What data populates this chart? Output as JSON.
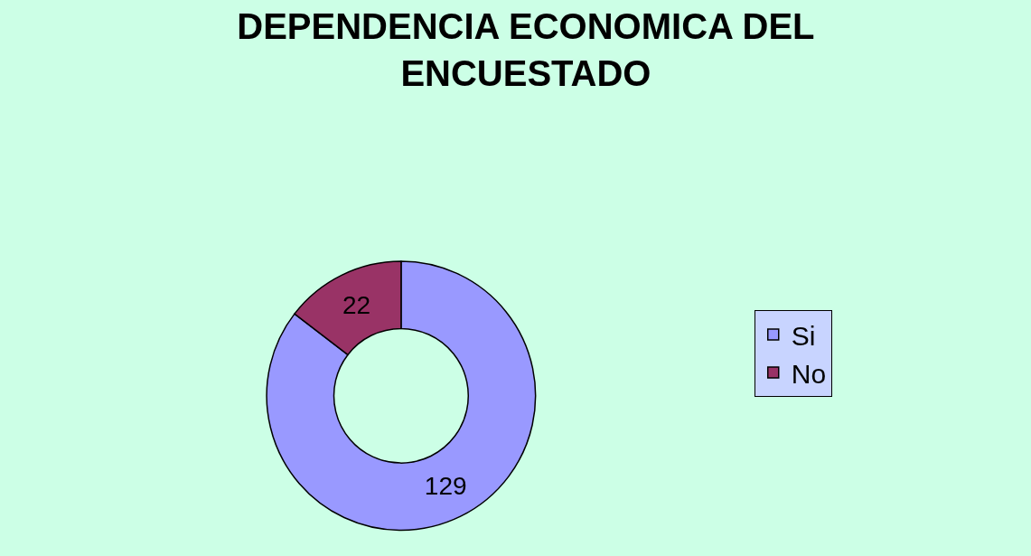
{
  "chart_data": {
    "type": "donut",
    "title": "DEPENDENCIA ECONOMICA DEL ENCUESTADO",
    "categories": [
      "Si",
      "No"
    ],
    "values": [
      129,
      22
    ],
    "colors": [
      "#9999ff",
      "#993366"
    ],
    "data_labels": true,
    "legend": "right"
  }
}
